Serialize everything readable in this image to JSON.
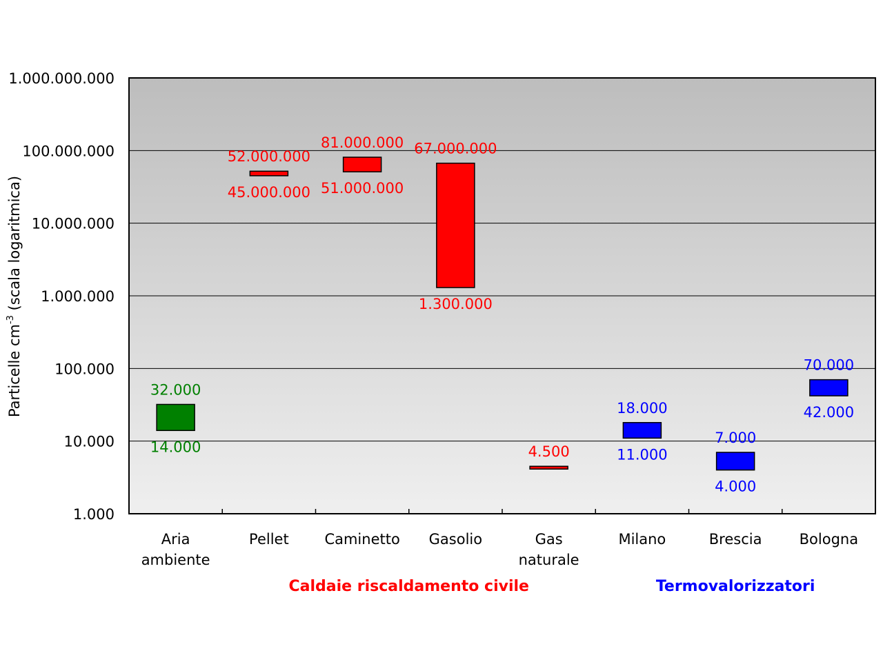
{
  "chart_data": {
    "type": "bar",
    "subtype": "floating-range",
    "scale": "log",
    "ylim": [
      1000,
      1000000000
    ],
    "yticks": [
      {
        "value": 1000000000,
        "label": "1.000.000.000"
      },
      {
        "value": 100000000,
        "label": "100.000.000"
      },
      {
        "value": 10000000,
        "label": "10.000.000"
      },
      {
        "value": 1000000,
        "label": "1.000.000"
      },
      {
        "value": 100000,
        "label": "100.000"
      },
      {
        "value": 10000,
        "label": "10.000"
      },
      {
        "value": 1000,
        "label": "1.000"
      }
    ],
    "ylabel": "Particelle cm",
    "ylabel_sup": "-3",
    "ylabel_suffix": " (scala logaritmica)",
    "grid": true,
    "bars": [
      {
        "category": [
          "Aria",
          "ambiente"
        ],
        "low": 14000,
        "high": 32000,
        "low_label": "14.000",
        "high_label": "32.000",
        "color": "#008000"
      },
      {
        "category": [
          "Pellet"
        ],
        "low": 45000000,
        "high": 52000000,
        "low_label": "45.000.000",
        "high_label": "52.000.000",
        "color": "#ff0000"
      },
      {
        "category": [
          "Caminetto"
        ],
        "low": 51000000,
        "high": 81000000,
        "low_label": "51.000.000",
        "high_label": "81.000.000",
        "color": "#ff0000"
      },
      {
        "category": [
          "Gasolio"
        ],
        "low": 1300000,
        "high": 67000000,
        "low_label": "1.300.000",
        "high_label": "67.000.000",
        "color": "#ff0000"
      },
      {
        "category": [
          "Gas",
          "naturale"
        ],
        "low": 4300,
        "high": 4500,
        "low_label": "",
        "high_label": "4.500",
        "color": "#ff0000"
      },
      {
        "category": [
          "Milano"
        ],
        "low": 11000,
        "high": 18000,
        "low_label": "11.000",
        "high_label": "18.000",
        "color": "#0000ff"
      },
      {
        "category": [
          "Brescia"
        ],
        "low": 4000,
        "high": 7000,
        "low_label": "4.000",
        "high_label": "7.000",
        "color": "#0000ff"
      },
      {
        "category": [
          "Bologna"
        ],
        "low": 42000,
        "high": 70000,
        "low_label": "42.000",
        "high_label": "70.000",
        "color": "#0000ff"
      }
    ],
    "groups": [
      {
        "label": "Caldaie riscaldamento civile",
        "color": "#ff0000",
        "from": 1,
        "to": 4
      },
      {
        "label": "Termovalorizzatori",
        "color": "#0000ff",
        "from": 5,
        "to": 7
      }
    ]
  }
}
